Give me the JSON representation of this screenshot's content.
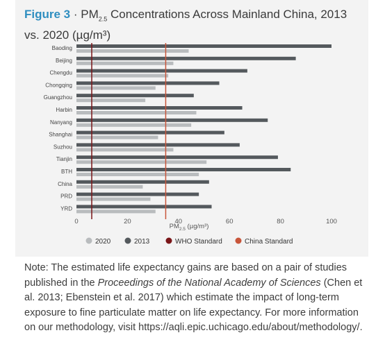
{
  "title": {
    "figure_label": "Figure 3",
    "separator": " · PM",
    "subscript": "2.5",
    "text": " Concentrations Across  Mainland China, 2013 vs. 2020 (µg/m³)"
  },
  "colors": {
    "series_2020": "#b9bcbe",
    "series_2013": "#54595d",
    "who_line": "#7a1518",
    "china_line": "#c8553a",
    "accent": "#2f8ec0"
  },
  "chart_data": {
    "type": "bar",
    "orientation": "horizontal",
    "categories": [
      "Baoding",
      "Beijing",
      "Chengdu",
      "Chongqing",
      "Guangzhou",
      "Harbin",
      "Nanyang",
      "Shanghai",
      "Suzhou",
      "Tianjin",
      "BTH",
      "China",
      "PRD",
      "YRD"
    ],
    "series": [
      {
        "name": "2020",
        "values": [
          44,
          38,
          36,
          31,
          27,
          47,
          45,
          32,
          38,
          51,
          48,
          26,
          29,
          31
        ]
      },
      {
        "name": "2013",
        "values": [
          100,
          86,
          67,
          56,
          46,
          65,
          75,
          58,
          64,
          79,
          84,
          52,
          48,
          53
        ]
      }
    ],
    "reference_lines": [
      {
        "name": "WHO Standard",
        "value": 6
      },
      {
        "name": "China Standard",
        "value": 35
      }
    ],
    "xlabel": "PM",
    "xlabel_sub": "2.5",
    "xlabel_unit": " (µg/m³)",
    "xlim": [
      0,
      100
    ],
    "xticks": [
      0,
      20,
      40,
      60,
      80,
      100
    ],
    "legend_position": "bottom"
  },
  "note": {
    "part1": "Note: The estimated life expectancy gains are based on a pair of studies published in the ",
    "journal": "Proceedings of the National Academy of Sciences",
    "part2": " (Chen et al. 2013; Ebenstein et al. 2017) which estimate the impact of long-term exposure to fine particulate matter on life expectancy. For more information on our methodology, visit https://aqli.epic.uchicago.edu/about/methodology/."
  }
}
